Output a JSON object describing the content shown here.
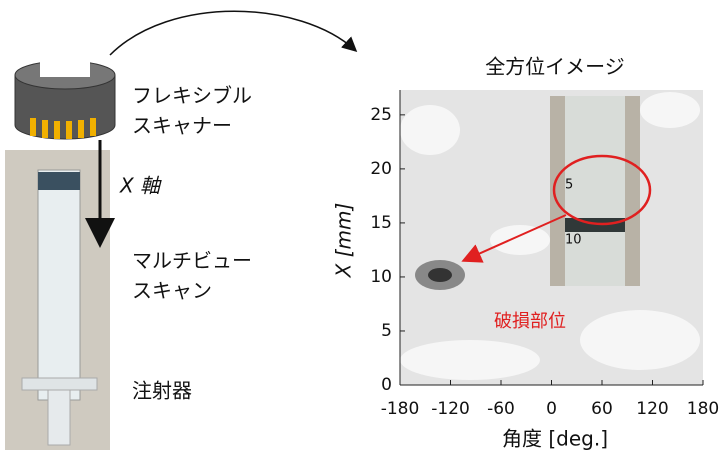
{
  "left": {
    "scanner_label": [
      "フレキシブル",
      "スキャナー"
    ],
    "axis_label": "X 軸",
    "scan_label": [
      "マルチビュー",
      "スキャン"
    ],
    "syringe_label": "注射器"
  },
  "plot": {
    "title": "全方位イメージ",
    "xlabel": "角度 [deg.]",
    "ylabel": "X [mm]",
    "annotation": "破損部位",
    "xlim": [
      -180,
      180
    ],
    "ylim": [
      0,
      27.3
    ],
    "xticks": [
      -180,
      -120,
      -60,
      0,
      60,
      120,
      180
    ],
    "yticks": [
      0,
      5,
      10,
      15,
      20,
      25
    ],
    "inset_labels": [
      "5",
      "10"
    ]
  }
}
